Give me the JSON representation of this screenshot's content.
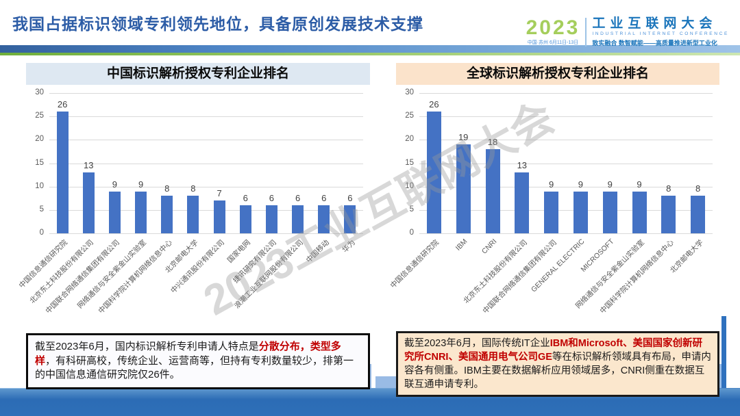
{
  "header": {
    "title": "我国占据标识领域专利领先地位，具备原创发展技术支撑"
  },
  "logo": {
    "year": "2023",
    "venue": "中国·苏州 6月11日-13日",
    "name_cn": "工业互联网大会",
    "name_en": "INDUSTRIAL INTERNET CONFERENCE",
    "tagline": "致实融合  数智赋能——高质量推进新型工业化"
  },
  "watermark": "2023工业互联网大会",
  "chart_data": [
    {
      "type": "bar",
      "title": "中国标识解析授权专利企业排名",
      "categories": [
        "中国信息通信研究院",
        "北京东土科技股份有限公司",
        "中国联合网络通信集团有限公司",
        "网络通信与安全紫金山实验室",
        "中国科学院计算机网络信息中心",
        "北京邮电大学",
        "中兴通讯股份有限公司",
        "国家电网",
        "捷讯研究有限公司",
        "浪潮工业互联网股份有限公司",
        "中国移动",
        "华为"
      ],
      "values": [
        26,
        13,
        9,
        9,
        8,
        8,
        7,
        6,
        6,
        6,
        6,
        6
      ],
      "ylim": [
        0,
        30
      ],
      "yticks": [
        0,
        5,
        10,
        15,
        20,
        25,
        30
      ],
      "grid": true,
      "value_labels": true,
      "legend": "none",
      "bar_color": "#4472C4",
      "title_bg": "#DEE8F2"
    },
    {
      "type": "bar",
      "title": "全球标识解析授权专利企业排名",
      "categories": [
        "中国信息通信研究院",
        "IBM",
        "CNRI",
        "北京东土科技股份有限公司",
        "中国联合网络通信集团有限公司",
        "GENERAL ELECTRIC",
        "MICROSOFT",
        "网络通信与安全紫金山实验室",
        "中国科学院计算机网络信息中心",
        "北京邮电大学"
      ],
      "values": [
        26,
        19,
        18,
        13,
        9,
        9,
        9,
        9,
        8,
        8
      ],
      "ylim": [
        0,
        30
      ],
      "yticks": [
        0,
        5,
        10,
        15,
        20,
        25,
        30
      ],
      "grid": true,
      "value_labels": true,
      "legend": "none",
      "bar_color": "#4472C4",
      "title_bg": "#FBE3CB"
    }
  ],
  "notes": {
    "left": {
      "segments": [
        {
          "text": "截至2023年6月，国内标识解析专利申请人特点是",
          "red": false
        },
        {
          "text": "分散分布，类型多样",
          "red": true
        },
        {
          "text": "，有科研高校，传统企业、运营商等，但持有专利数量较少，排第一的中国信息通信研究院仅26件。",
          "red": false
        }
      ]
    },
    "right": {
      "segments": [
        {
          "text": "截至2023年6月，国际传统IT企业",
          "red": false
        },
        {
          "text": "IBM和Microsoft、美国国家创新研究所CNRI、美国通用电气公司GE",
          "red": true
        },
        {
          "text": "等在标识解析领域具有布局，申请内容各有侧重。IBM主要在数据解析应用领域居多，CNRI侧重在数据互联互通申请专利。",
          "red": false
        }
      ]
    }
  },
  "colors": {
    "title_blue": "#2C5CA6",
    "bar_blue": "#4472C4",
    "red_accent": "#C00000",
    "band_green": "#86BC4C",
    "logo_green": "#A5CE5C",
    "logo_blue": "#1B75BB",
    "left_title_bg": "#DEE8F2",
    "right_title_bg": "#FBE3CB",
    "right_note_bg": "#FBE7CD",
    "footer_blue": "#2C6CB5",
    "skyline_blue": "#8FB4E3"
  }
}
